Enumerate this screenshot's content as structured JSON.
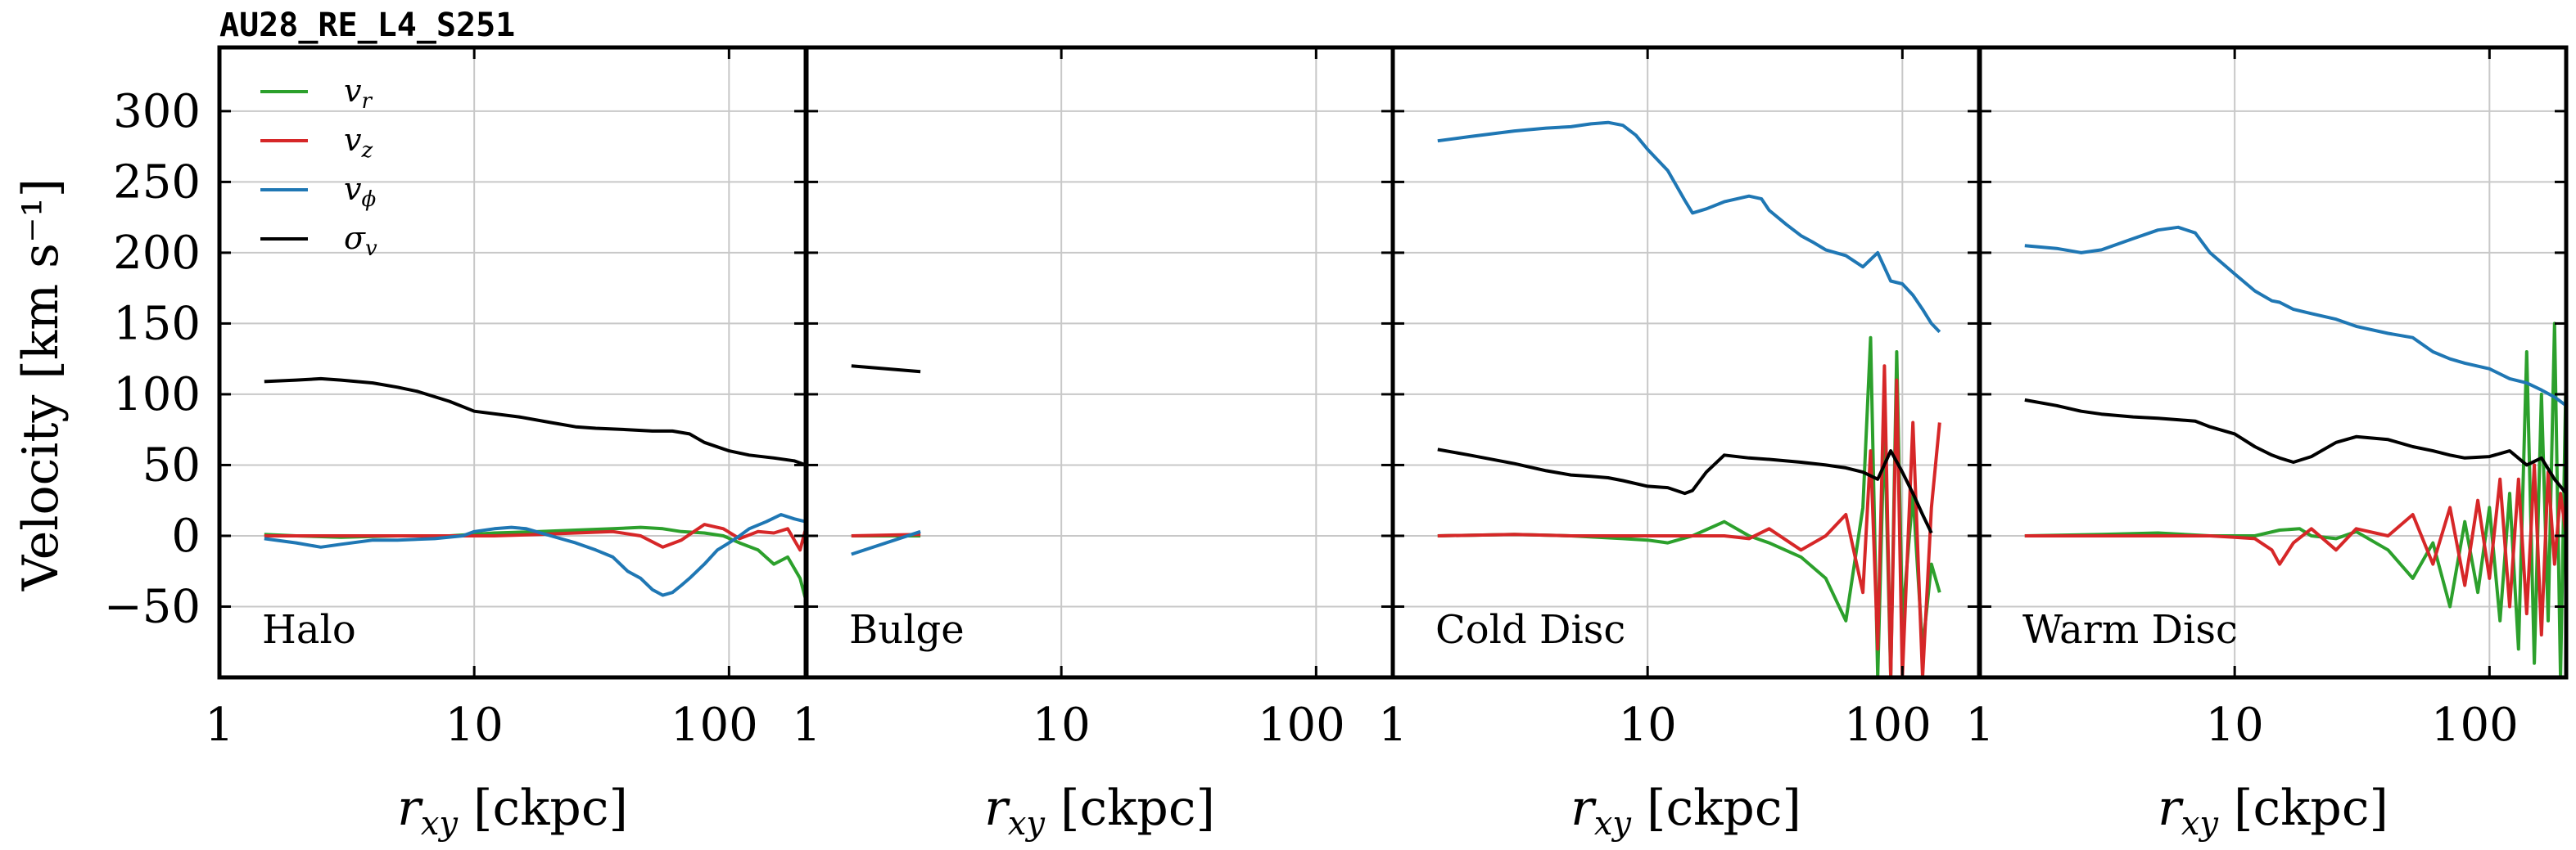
{
  "figure_title": "AU28_RE_L4_S251",
  "ylabel": "Velocity [km s⁻¹]",
  "chart_data": {
    "type": "line",
    "title": "AU28_RE_L4_S251",
    "ylabel": "Velocity [km s⁻¹]",
    "xlabel": "r_xy [ckpc]",
    "xscale": "log",
    "xlim": [
      1,
      200
    ],
    "ylim": [
      -100,
      345
    ],
    "xticks": [
      1,
      10,
      100
    ],
    "xtick_labels": [
      "1",
      "10",
      "100"
    ],
    "yticks": [
      -50,
      0,
      50,
      100,
      150,
      200,
      250,
      300
    ],
    "ytick_labels": [
      "−50",
      "0",
      "50",
      "100",
      "150",
      "200",
      "250",
      "300"
    ],
    "grid": true,
    "legend_position": "top-left",
    "legend": [
      {
        "name": "v_r",
        "display": "v",
        "sub": "r",
        "color": "#2ca02c"
      },
      {
        "name": "v_z",
        "display": "v",
        "sub": "z",
        "color": "#d62728"
      },
      {
        "name": "v_phi",
        "display": "v",
        "sub": "ϕ",
        "color": "#1f77b4"
      },
      {
        "name": "sigma_v",
        "display": "σ",
        "sub": "v",
        "color": "#000000"
      }
    ],
    "panels": [
      {
        "label": "Halo",
        "xlabel": "r_xy [ckpc]",
        "series": [
          {
            "name": "v_r",
            "color": "#2ca02c",
            "x": [
              1.5,
              2,
              3,
              5,
              8,
              12,
              18,
              25,
              35,
              45,
              55,
              65,
              80,
              95,
              110,
              130,
              150,
              170,
              190,
              200
            ],
            "y": [
              1,
              0,
              -1,
              0,
              0,
              2,
              3,
              4,
              5,
              6,
              5,
              3,
              2,
              0,
              -5,
              -10,
              -20,
              -15,
              -30,
              -45
            ]
          },
          {
            "name": "v_z",
            "color": "#d62728",
            "x": [
              1.5,
              2,
              3,
              5,
              8,
              12,
              18,
              25,
              35,
              45,
              55,
              65,
              80,
              95,
              110,
              130,
              150,
              170,
              190,
              200
            ],
            "y": [
              0,
              0,
              0,
              0,
              0,
              0,
              1,
              2,
              3,
              0,
              -8,
              -3,
              8,
              5,
              -2,
              3,
              2,
              5,
              -10,
              5
            ]
          },
          {
            "name": "v_phi",
            "color": "#1f77b4",
            "x": [
              1.5,
              2,
              2.5,
              3,
              4,
              5,
              7,
              9,
              10,
              12,
              14,
              16,
              20,
              25,
              30,
              35,
              40,
              45,
              50,
              55,
              60,
              65,
              70,
              80,
              90,
              100,
              110,
              120,
              140,
              160,
              180,
              200
            ],
            "y": [
              -2,
              -5,
              -8,
              -6,
              -3,
              -3,
              -2,
              0,
              3,
              5,
              6,
              5,
              0,
              -5,
              -10,
              -15,
              -25,
              -30,
              -38,
              -42,
              -40,
              -35,
              -30,
              -20,
              -10,
              -5,
              0,
              5,
              10,
              15,
              12,
              10
            ]
          },
          {
            "name": "sigma_v",
            "color": "#000000",
            "x": [
              1.5,
              2,
              2.5,
              3,
              4,
              5,
              6,
              8,
              10,
              15,
              20,
              25,
              30,
              40,
              50,
              60,
              70,
              80,
              100,
              120,
              150,
              180,
              200
            ],
            "y": [
              109,
              110,
              111,
              110,
              108,
              105,
              102,
              95,
              88,
              84,
              80,
              77,
              76,
              75,
              74,
              74,
              72,
              66,
              60,
              57,
              55,
              53,
              50
            ]
          }
        ]
      },
      {
        "label": "Bulge",
        "xlabel": "r_xy [ckpc]",
        "series": [
          {
            "name": "v_r",
            "color": "#2ca02c",
            "x": [
              1.5,
              2.8
            ],
            "y": [
              0,
              0
            ]
          },
          {
            "name": "v_z",
            "color": "#d62728",
            "x": [
              1.5,
              2.8
            ],
            "y": [
              0,
              1
            ]
          },
          {
            "name": "v_phi",
            "color": "#1f77b4",
            "x": [
              1.5,
              2.8
            ],
            "y": [
              -13,
              3
            ]
          },
          {
            "name": "sigma_v",
            "color": "#000000",
            "x": [
              1.5,
              2.8
            ],
            "y": [
              120,
              116
            ]
          }
        ]
      },
      {
        "label": "Cold Disc",
        "xlabel": "r_xy [ckpc]",
        "series": [
          {
            "name": "v_r",
            "color": "#2ca02c",
            "x": [
              1.5,
              3,
              5,
              8,
              10,
              12,
              15,
              20,
              25,
              30,
              40,
              50,
              60,
              70,
              75,
              80,
              85,
              90,
              95,
              100,
              110,
              120,
              130,
              140
            ],
            "y": [
              0,
              1,
              0,
              -2,
              -3,
              -5,
              0,
              10,
              0,
              -5,
              -15,
              -30,
              -60,
              20,
              140,
              -100,
              80,
              -100,
              130,
              -60,
              30,
              -80,
              -20,
              -40
            ]
          },
          {
            "name": "v_z",
            "color": "#d62728",
            "x": [
              1.5,
              3,
              5,
              8,
              10,
              15,
              20,
              25,
              30,
              40,
              50,
              60,
              70,
              75,
              80,
              85,
              90,
              95,
              100,
              110,
              120,
              130,
              140
            ],
            "y": [
              0,
              1,
              0,
              0,
              0,
              0,
              0,
              -2,
              5,
              -10,
              0,
              15,
              -40,
              60,
              -80,
              120,
              -100,
              110,
              -100,
              80,
              -100,
              20,
              80
            ]
          },
          {
            "name": "v_phi",
            "color": "#1f77b4",
            "x": [
              1.5,
              2,
              3,
              4,
              5,
              6,
              7,
              8,
              9,
              10,
              12,
              14,
              15,
              17,
              20,
              25,
              28,
              30,
              35,
              40,
              45,
              50,
              60,
              70,
              80,
              90,
              100,
              110,
              120,
              130,
              140
            ],
            "y": [
              279,
              282,
              286,
              288,
              289,
              291,
              292,
              290,
              283,
              273,
              258,
              237,
              228,
              231,
              236,
              240,
              238,
              230,
              220,
              212,
              207,
              202,
              198,
              190,
              200,
              180,
              178,
              170,
              160,
              150,
              144
            ]
          },
          {
            "name": "sigma_v",
            "color": "#000000",
            "x": [
              1.5,
              2,
              3,
              4,
              5,
              6,
              7,
              8,
              10,
              12,
              14,
              15,
              17,
              20,
              25,
              30,
              40,
              50,
              60,
              70,
              80,
              90,
              100,
              110,
              120,
              130
            ],
            "y": [
              61,
              57,
              51,
              46,
              43,
              42,
              41,
              39,
              35,
              34,
              30,
              32,
              45,
              57,
              55,
              54,
              52,
              50,
              48,
              45,
              40,
              60,
              45,
              30,
              15,
              2
            ]
          }
        ]
      },
      {
        "label": "Warm Disc",
        "xlabel": "r_xy [ckpc]",
        "series": [
          {
            "name": "v_r",
            "color": "#2ca02c",
            "x": [
              1.5,
              3,
              5,
              8,
              12,
              15,
              18,
              20,
              25,
              30,
              40,
              50,
              60,
              70,
              80,
              90,
              100,
              110,
              120,
              130,
              140,
              150,
              160,
              170,
              180,
              190,
              200
            ],
            "y": [
              0,
              1,
              2,
              0,
              0,
              4,
              5,
              0,
              -2,
              3,
              -10,
              -30,
              -5,
              -50,
              10,
              -40,
              20,
              -60,
              30,
              -80,
              130,
              -90,
              100,
              -60,
              150,
              -100,
              120
            ]
          },
          {
            "name": "v_z",
            "color": "#d62728",
            "x": [
              1.5,
              3,
              5,
              8,
              10,
              12,
              14,
              15,
              17,
              20,
              25,
              30,
              40,
              50,
              60,
              70,
              80,
              90,
              100,
              110,
              120,
              130,
              140,
              150,
              160,
              170,
              180,
              190,
              200
            ],
            "y": [
              0,
              0,
              0,
              0,
              -1,
              -2,
              -10,
              -20,
              -5,
              5,
              -10,
              5,
              0,
              15,
              -20,
              20,
              -35,
              25,
              -30,
              40,
              -50,
              40,
              -55,
              50,
              -70,
              45,
              -20,
              30,
              0
            ]
          },
          {
            "name": "v_phi",
            "color": "#1f77b4",
            "x": [
              1.5,
              2,
              2.5,
              3,
              4,
              5,
              6,
              7,
              8,
              10,
              12,
              14,
              15,
              17,
              20,
              25,
              30,
              40,
              50,
              60,
              70,
              80,
              100,
              120,
              140,
              160,
              180,
              200
            ],
            "y": [
              205,
              203,
              200,
              202,
              210,
              216,
              218,
              214,
              200,
              185,
              173,
              166,
              165,
              160,
              157,
              153,
              148,
              143,
              140,
              130,
              125,
              122,
              118,
              111,
              108,
              103,
              98,
              92
            ]
          },
          {
            "name": "sigma_v",
            "color": "#000000",
            "x": [
              1.5,
              2,
              2.5,
              3,
              4,
              5,
              6,
              7,
              8,
              10,
              12,
              14,
              15,
              17,
              20,
              25,
              30,
              40,
              50,
              60,
              70,
              80,
              100,
              120,
              140,
              160,
              180,
              200
            ],
            "y": [
              96,
              92,
              88,
              86,
              84,
              83,
              82,
              81,
              77,
              72,
              63,
              57,
              55,
              52,
              56,
              66,
              70,
              68,
              63,
              60,
              57,
              55,
              56,
              60,
              50,
              55,
              40,
              30
            ]
          }
        ]
      }
    ]
  }
}
